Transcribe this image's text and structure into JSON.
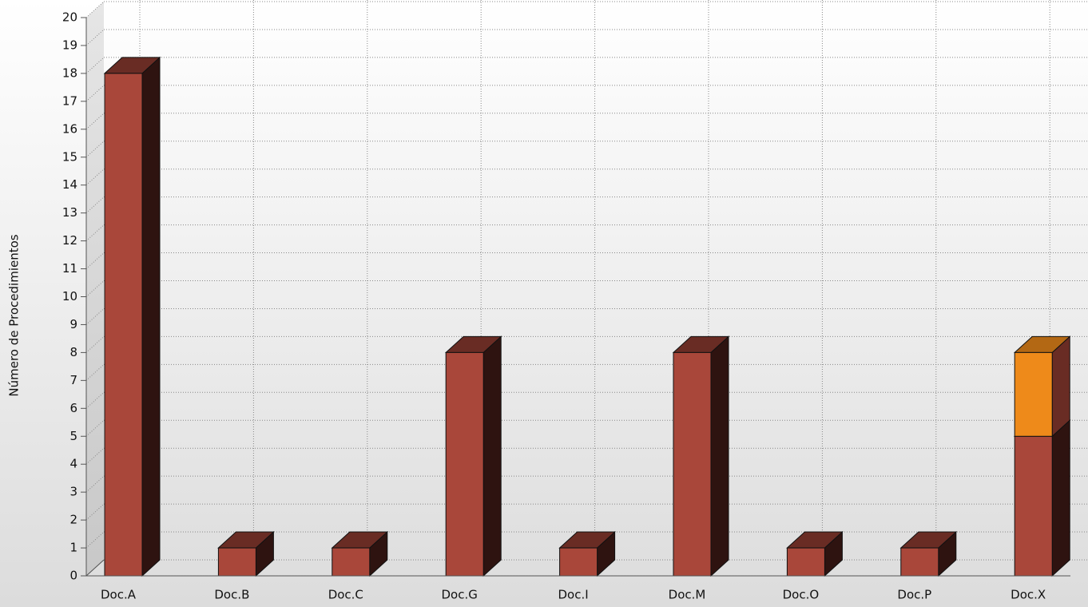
{
  "chart_data": {
    "type": "bar3d_stacked",
    "y_label": "Número de Procedimientos",
    "categories": [
      "Doc.A",
      "Doc.B",
      "Doc.C",
      "Doc.G",
      "Doc.I",
      "Doc.M",
      "Doc.O",
      "Doc.P",
      "Doc.X"
    ],
    "series": [
      {
        "color": "#a9473a",
        "values": [
          18,
          1,
          1,
          8,
          1,
          8,
          1,
          1,
          5
        ]
      },
      {
        "color": "#ee8a1a",
        "values": [
          0,
          0,
          0,
          0,
          0,
          0,
          0,
          0,
          3
        ]
      }
    ],
    "ylim": [
      0,
      20
    ],
    "yticks": [
      0,
      1,
      2,
      3,
      4,
      5,
      6,
      7,
      8,
      9,
      10,
      11,
      12,
      13,
      14,
      15,
      16,
      17,
      18,
      19,
      20
    ],
    "grid": true
  }
}
